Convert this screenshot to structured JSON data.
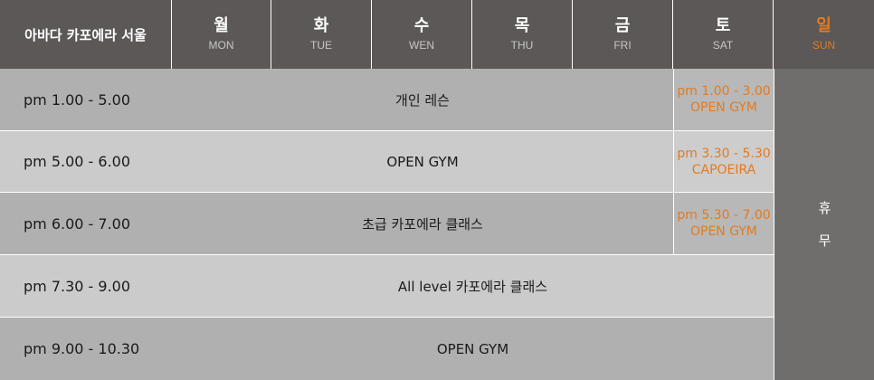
{
  "header": {
    "title": "아바다 카포에라 서울",
    "days": [
      {
        "ko": "월",
        "en": "MON"
      },
      {
        "ko": "화",
        "en": "TUE"
      },
      {
        "ko": "수",
        "en": "WEN"
      },
      {
        "ko": "목",
        "en": "THU"
      },
      {
        "ko": "금",
        "en": "FRI"
      },
      {
        "ko": "토",
        "en": "SAT"
      },
      {
        "ko": "일",
        "en": "SUN"
      }
    ]
  },
  "rows": [
    {
      "time": "pm 1.00 - 5.00",
      "weekday": "개인 레슨"
    },
    {
      "time": "pm 5.00 - 6.00",
      "weekday": "OPEN GYM"
    },
    {
      "time": "pm 6.00 - 7.00",
      "weekday": "초급 카포에라 클래스"
    },
    {
      "time": "pm 7.30 - 9.00",
      "weekday": "All level 카포에라 클래스"
    },
    {
      "time": "pm 9.00 - 10.30",
      "weekday": "OPEN GYM"
    }
  ],
  "saturday": [
    {
      "time": "pm 1.00 - 3.00",
      "class": "OPEN GYM"
    },
    {
      "time": "pm 3.30 - 5.30",
      "class": "CAPOEIRA"
    },
    {
      "time": "pm 5.30 - 7.00",
      "class": "OPEN GYM"
    }
  ],
  "sunday": {
    "line1": "휴",
    "line2": "무"
  },
  "colors": {
    "header_bg": "#5b5857",
    "accent": "#e57a1e",
    "sunday_bg": "#706e6d"
  }
}
